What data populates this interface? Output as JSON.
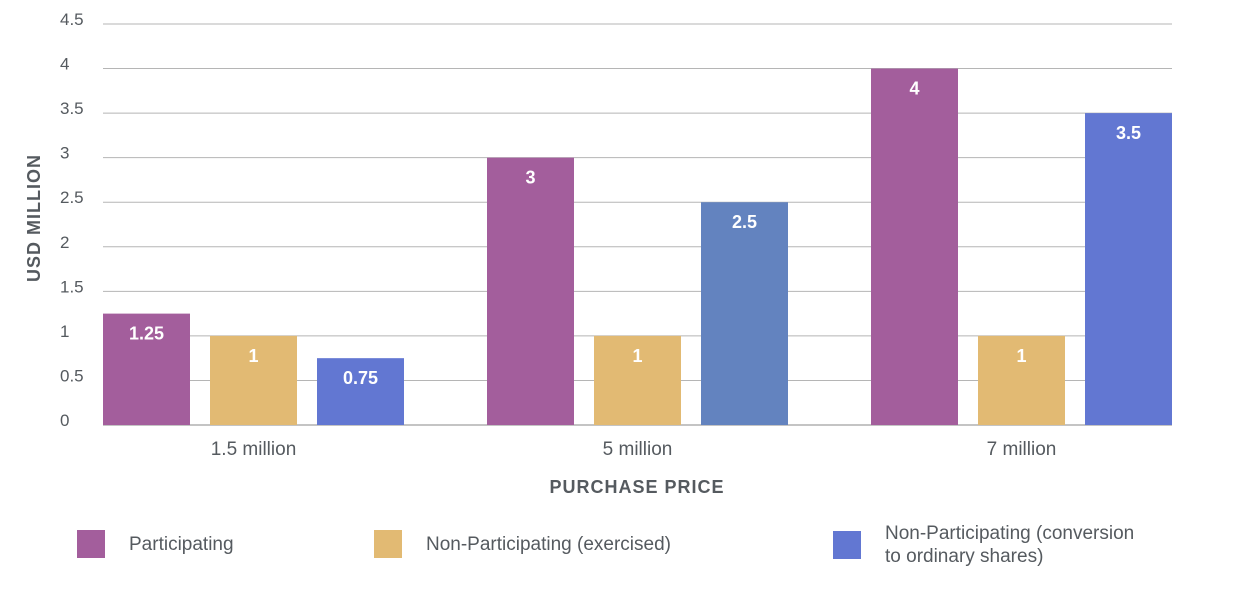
{
  "chart_data": {
    "type": "bar",
    "categories": [
      "1.5 million",
      "5 million",
      "7 million"
    ],
    "xlabel": "PURCHASE PRICE",
    "ylabel": "USD MILLION",
    "ylim": [
      0,
      4.5
    ],
    "yticks": [
      "0",
      "0.5",
      "1",
      "1.5",
      "2",
      "2.5",
      "3",
      "3.5",
      "4",
      "4.5"
    ],
    "grid": true,
    "legend_position": "bottom",
    "series": [
      {
        "name": "Participating",
        "values": [
          1.25,
          3,
          4
        ],
        "labels": [
          "1.25",
          "3",
          "4"
        ],
        "color": "#a35e9c"
      },
      {
        "name": "Non-Participating (exercised)",
        "values": [
          1,
          1,
          1
        ],
        "labels": [
          "1",
          "1",
          "1"
        ],
        "color": "#e2ba73"
      },
      {
        "name": "Non-Participating (conversion to ordinary shares)",
        "values": [
          0.75,
          2.5,
          3.5
        ],
        "labels": [
          "0.75",
          "2.5",
          "3.5"
        ],
        "colors": [
          "#6277d2",
          "#6383bf",
          "#6277d2"
        ]
      }
    ]
  },
  "legend": {
    "items": [
      {
        "label": "Participating",
        "color": "#a35e9c"
      },
      {
        "label": "Non-Participating (exercised)",
        "color": "#e2ba73"
      },
      {
        "label_line1": "Non-Participating (conversion",
        "label_line2": "to ordinary shares)",
        "color": "#6277d2"
      }
    ]
  }
}
